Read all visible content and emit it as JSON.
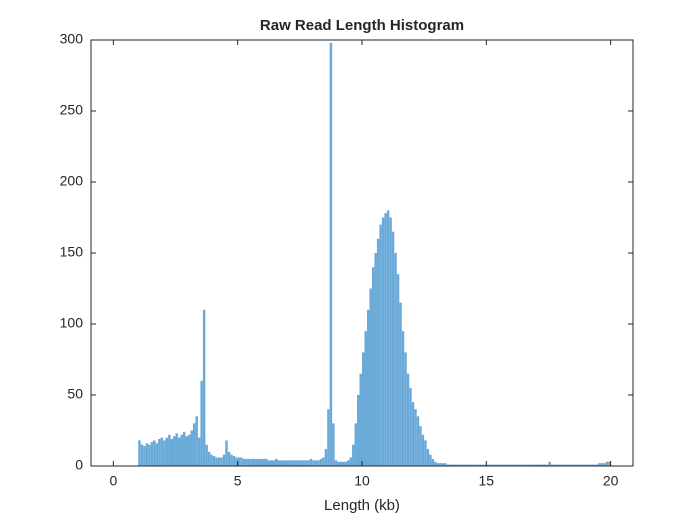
{
  "chart_data": {
    "type": "histogram",
    "title": "Raw Read Length Histogram",
    "xlabel": "Length (kb)",
    "color": "#6aaad8",
    "bins": [
      1.0,
      1.1,
      1.2,
      1.3,
      1.4,
      1.5,
      1.6,
      1.7,
      1.8,
      1.9,
      2.0,
      2.1,
      2.2,
      2.3,
      2.4,
      2.5,
      2.6,
      2.7,
      2.8,
      2.9,
      3.0,
      3.1,
      3.2,
      3.3,
      3.4,
      3.5,
      3.6,
      3.7,
      3.8,
      3.9,
      4.0,
      4.1,
      4.2,
      4.3,
      4.4,
      4.5,
      4.6,
      4.7,
      4.8,
      4.9,
      5.0,
      5.1,
      5.2,
      5.3,
      5.4,
      5.5,
      5.6,
      5.7,
      5.8,
      5.9,
      6.0,
      6.1,
      6.2,
      6.3,
      6.4,
      6.5,
      6.6,
      6.7,
      6.8,
      6.9,
      7.0,
      7.1,
      7.2,
      7.3,
      7.4,
      7.5,
      7.6,
      7.7,
      7.8,
      7.9,
      8.0,
      8.1,
      8.2,
      8.3,
      8.4,
      8.5,
      8.6,
      8.7,
      8.8,
      8.9,
      9.0,
      9.1,
      9.2,
      9.3,
      9.4,
      9.5,
      9.6,
      9.7,
      9.8,
      9.9,
      10.0,
      10.1,
      10.2,
      10.3,
      10.4,
      10.5,
      10.6,
      10.7,
      10.8,
      10.9,
      11.0,
      11.1,
      11.2,
      11.3,
      11.4,
      11.5,
      11.6,
      11.7,
      11.8,
      11.9,
      12.0,
      12.1,
      12.2,
      12.3,
      12.4,
      12.5,
      12.6,
      12.7,
      12.8,
      12.9,
      13.0,
      13.1,
      13.2,
      13.3,
      13.4,
      13.5,
      13.6,
      13.7,
      13.8,
      13.9,
      14.0,
      14.1,
      14.2,
      14.3,
      14.4,
      14.5,
      14.6,
      14.7,
      14.8,
      14.9,
      15.0,
      15.1,
      15.2,
      15.3,
      15.4,
      15.5,
      15.6,
      15.7,
      15.8,
      15.9,
      16.0,
      16.1,
      16.2,
      16.3,
      16.4,
      16.5,
      16.6,
      16.7,
      16.8,
      16.9,
      17.0,
      17.1,
      17.2,
      17.3,
      17.4,
      17.5,
      17.6,
      17.7,
      17.8,
      17.9,
      18.0,
      18.1,
      18.2,
      18.3,
      18.4,
      18.5,
      18.6,
      18.7,
      18.8,
      18.9,
      19.0,
      19.1,
      19.2,
      19.3,
      19.4,
      19.5,
      19.6,
      19.7,
      19.8,
      19.9,
      20.0
    ],
    "values": [
      18,
      15,
      14,
      16,
      15,
      17,
      18,
      16,
      19,
      20,
      18,
      20,
      22,
      19,
      21,
      23,
      20,
      22,
      24,
      21,
      22,
      25,
      30,
      35,
      20,
      60,
      110,
      15,
      10,
      8,
      7,
      6,
      6,
      6,
      8,
      18,
      10,
      8,
      7,
      6,
      6,
      6,
      5,
      5,
      5,
      5,
      5,
      5,
      5,
      5,
      5,
      5,
      4,
      4,
      4,
      5,
      4,
      4,
      4,
      4,
      4,
      4,
      4,
      4,
      4,
      4,
      4,
      4,
      4,
      5,
      4,
      4,
      4,
      5,
      6,
      12,
      40,
      298,
      30,
      4,
      3,
      3,
      3,
      3,
      4,
      6,
      15,
      30,
      50,
      65,
      80,
      95,
      110,
      125,
      140,
      150,
      160,
      170,
      175,
      178,
      180,
      175,
      165,
      150,
      135,
      115,
      95,
      80,
      65,
      55,
      45,
      40,
      35,
      28,
      22,
      18,
      12,
      8,
      5,
      3,
      2,
      2,
      2,
      2,
      1,
      1,
      1,
      1,
      1,
      1,
      1,
      1,
      1,
      1,
      1,
      1,
      1,
      1,
      1,
      1,
      1,
      1,
      1,
      1,
      1,
      1,
      1,
      1,
      1,
      1,
      1,
      1,
      1,
      1,
      1,
      1,
      1,
      1,
      1,
      1,
      1,
      1,
      1,
      1,
      1,
      3,
      1,
      1,
      1,
      1,
      1,
      1,
      1,
      1,
      1,
      1,
      1,
      1,
      1,
      1,
      1,
      1,
      1,
      1,
      1,
      2,
      2,
      2,
      3,
      3
    ],
    "xlim": [
      -0.9,
      20.9
    ],
    "xticks": [
      0,
      5,
      10,
      15,
      20
    ],
    "ylim": [
      0,
      300
    ],
    "yticks": [
      0,
      50,
      100,
      150,
      200,
      250,
      300
    ]
  }
}
